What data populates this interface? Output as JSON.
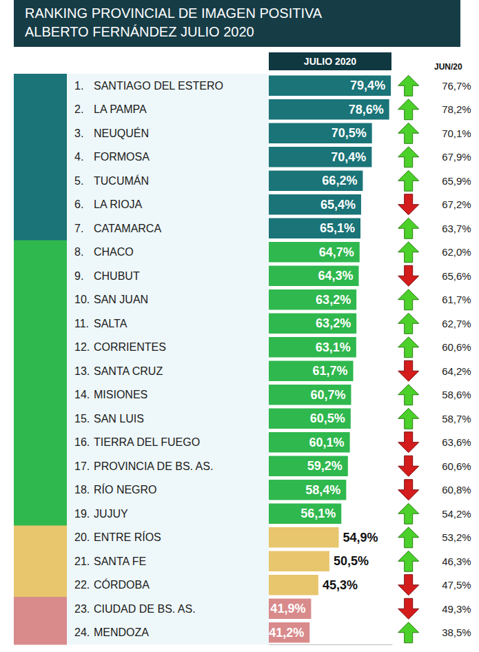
{
  "chart_data": {
    "type": "bar",
    "title": "RANKING PROVINCIAL DE IMAGEN POSITIVA ALBERTO FERNÁNDEZ JULIO 2020",
    "orientation": "horizontal",
    "data_labels": true,
    "tick_labels": "y",
    "grid": false,
    "xlim": [
      22,
      80
    ],
    "ranks": [
      "1.",
      "2.",
      "3.",
      "4.",
      "5.",
      "6.",
      "7.",
      "8.",
      "9.",
      "10.",
      "11.",
      "12.",
      "13.",
      "14.",
      "15.",
      "16.",
      "17.",
      "18.",
      "19.",
      "20.",
      "21.",
      "22.",
      "23.",
      "24."
    ],
    "categories": [
      "SANTIAGO DEL ESTERO",
      "LA PAMPA",
      "NEUQUÉN",
      "FORMOSA",
      "TUCUMÁN",
      "LA RIOJA",
      "CATAMARCA",
      "CHACO",
      "CHUBUT",
      "SAN JUAN",
      "SALTA",
      "CORRIENTES",
      "SANTA CRUZ",
      "MISIONES",
      "SAN LUIS",
      "TIERRA DEL FUEGO",
      "PROVINCIA DE BS. AS.",
      "RÍO NEGRO",
      "JUJUY",
      "ENTRE RÍOS",
      "SANTA FE",
      "CÓRDOBA",
      "CIUDAD DE BS. AS.",
      "MENDOZA"
    ],
    "series": [
      {
        "name": "JULIO 2020",
        "values": [
          79.4,
          78.6,
          70.5,
          70.4,
          66.2,
          65.4,
          65.1,
          64.7,
          64.3,
          63.2,
          63.2,
          63.1,
          61.7,
          60.7,
          60.5,
          60.1,
          59.2,
          58.4,
          56.1,
          54.9,
          50.5,
          45.3,
          41.9,
          41.2
        ],
        "value_labels": [
          "79,4%",
          "78,6%",
          "70,5%",
          "70,4%",
          "66,2%",
          "65,4%",
          "65,1%",
          "64,7%",
          "64,3%",
          "63,2%",
          "63,2%",
          "63,1%",
          "61,7%",
          "60,7%",
          "60,5%",
          "60,1%",
          "59,2%",
          "58,4%",
          "56,1%",
          "54,9%",
          "50,5%",
          "45,3%",
          "41,9%",
          "41,2%"
        ],
        "colors": [
          "#1a7478",
          "#1a7478",
          "#1a7478",
          "#1a7478",
          "#1a7478",
          "#1a7478",
          "#1a7478",
          "#2fb84e",
          "#2fb84e",
          "#2fb84e",
          "#2fb84e",
          "#2fb84e",
          "#2fb84e",
          "#2fb84e",
          "#2fb84e",
          "#2fb84e",
          "#2fb84e",
          "#2fb84e",
          "#2fb84e",
          "#e8c66e",
          "#e8c66e",
          "#e8c66e",
          "#d98b8c",
          "#d98b8c"
        ]
      }
    ],
    "previous": {
      "name": "JUN/20",
      "values": [
        76.7,
        78.2,
        70.1,
        67.9,
        65.9,
        67.2,
        63.7,
        62.0,
        65.6,
        61.7,
        62.7,
        60.6,
        64.2,
        58.6,
        58.7,
        63.6,
        60.6,
        60.8,
        54.2,
        53.2,
        46.3,
        47.5,
        49.3,
        38.5
      ],
      "value_labels": [
        "76,7%",
        "78,2%",
        "70,1%",
        "67,9%",
        "65,9%",
        "67,2%",
        "63,7%",
        "62,0%",
        "65,6%",
        "61,7%",
        "62,7%",
        "60,6%",
        "64,2%",
        "58,6%",
        "58,7%",
        "63,6%",
        "60,6%",
        "60,8%",
        "54,2%",
        "53,2%",
        "46,3%",
        "47,5%",
        "49,3%",
        "38,5%"
      ]
    }
  }
}
